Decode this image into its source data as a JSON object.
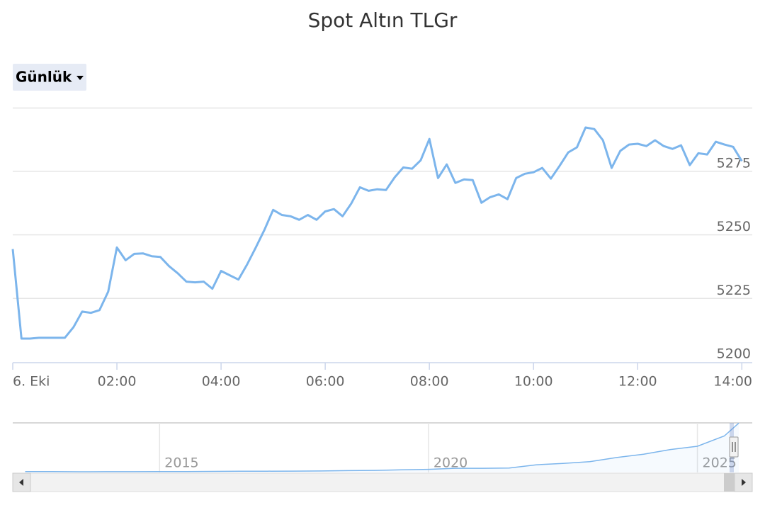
{
  "chart_data": {
    "type": "line",
    "title": "Spot Altın TLGr",
    "range_selector": "Günlük",
    "color": "#7cb5ec",
    "grid": true,
    "x": [
      "00:00",
      "00:10",
      "00:20",
      "00:30",
      "00:40",
      "00:50",
      "01:00",
      "01:10",
      "01:20",
      "01:30",
      "01:40",
      "01:50",
      "02:00",
      "02:10",
      "02:20",
      "02:30",
      "02:40",
      "02:50",
      "03:00",
      "03:10",
      "03:20",
      "03:30",
      "03:40",
      "03:50",
      "04:00",
      "04:10",
      "04:20",
      "04:30",
      "04:40",
      "04:50",
      "05:00",
      "05:10",
      "05:20",
      "05:30",
      "05:40",
      "05:50",
      "06:00",
      "06:10",
      "06:20",
      "06:30",
      "06:40",
      "06:50",
      "07:00",
      "07:10",
      "07:20",
      "07:30",
      "07:40",
      "07:50",
      "08:00",
      "08:10",
      "08:20",
      "08:30",
      "08:40",
      "08:50",
      "09:00",
      "09:10",
      "09:20",
      "09:30",
      "09:40",
      "09:50",
      "10:00",
      "10:10",
      "10:20",
      "10:30",
      "10:40",
      "10:50",
      "11:00",
      "11:10",
      "11:20",
      "11:30",
      "11:40",
      "11:50",
      "12:00",
      "12:10",
      "12:20",
      "12:30",
      "12:40",
      "12:50",
      "13:00",
      "13:10",
      "13:20",
      "13:30",
      "13:40",
      "13:50",
      "14:00"
    ],
    "values": [
      5244.4,
      5209.2,
      5209.2,
      5209.5,
      5209.5,
      5209.5,
      5209.5,
      5213.7,
      5219.8,
      5219.3,
      5220.4,
      5227.7,
      5245.0,
      5240.0,
      5242.5,
      5242.7,
      5241.6,
      5241.3,
      5237.7,
      5234.9,
      5231.6,
      5231.3,
      5231.6,
      5228.8,
      5235.8,
      5234.1,
      5232.4,
      5238.3,
      5245.0,
      5252.0,
      5259.8,
      5257.8,
      5257.3,
      5255.9,
      5257.8,
      5255.9,
      5259.2,
      5260.1,
      5257.3,
      5262.3,
      5268.7,
      5267.3,
      5267.9,
      5267.6,
      5272.6,
      5276.5,
      5276.0,
      5279.3,
      5287.7,
      5272.3,
      5277.7,
      5270.4,
      5271.8,
      5271.5,
      5262.6,
      5264.8,
      5265.9,
      5264.0,
      5272.3,
      5274.0,
      5274.6,
      5276.3,
      5272.1,
      5277.1,
      5282.4,
      5284.4,
      5292.2,
      5291.6,
      5287.2,
      5276.3,
      5283.0,
      5285.5,
      5285.8,
      5284.9,
      5287.2,
      5284.9,
      5283.8,
      5285.2,
      5277.4,
      5282.1,
      5281.6,
      5286.6,
      5285.5,
      5284.6,
      5279.0
    ],
    "xlim": [
      "00:00",
      "14:12"
    ],
    "xticks": [
      {
        "value": "00:00",
        "label": "6. Eki"
      },
      "02:00",
      "04:00",
      "06:00",
      "08:00",
      "10:00",
      "12:00",
      "14:00"
    ],
    "ylim": [
      5200,
      5300
    ],
    "yticks": [
      5200,
      5225,
      5250,
      5275
    ],
    "navigator": {
      "type": "area",
      "color": "#7cb5ec",
      "x": [
        2012.5,
        2013,
        2013.5,
        2014,
        2014.5,
        2015,
        2015.5,
        2016,
        2016.5,
        2017,
        2017.5,
        2018,
        2018.5,
        2019,
        2019.5,
        2020,
        2020.5,
        2021,
        2021.5,
        2022,
        2022.5,
        2023,
        2023.5,
        2024,
        2024.5,
        2025,
        2025.5,
        2025.77
      ],
      "values": [
        95,
        90,
        75,
        80,
        85,
        90,
        90,
        115,
        125,
        140,
        145,
        160,
        200,
        220,
        280,
        330,
        450,
        450,
        480,
        820,
        970,
        1150,
        1600,
        1950,
        2450,
        2800,
        3900,
        5280
      ],
      "xlim": [
        2012.27,
        2026.02
      ],
      "ylim": [
        0,
        5300
      ],
      "xticks": [
        2015,
        2020,
        2025
      ]
    }
  }
}
